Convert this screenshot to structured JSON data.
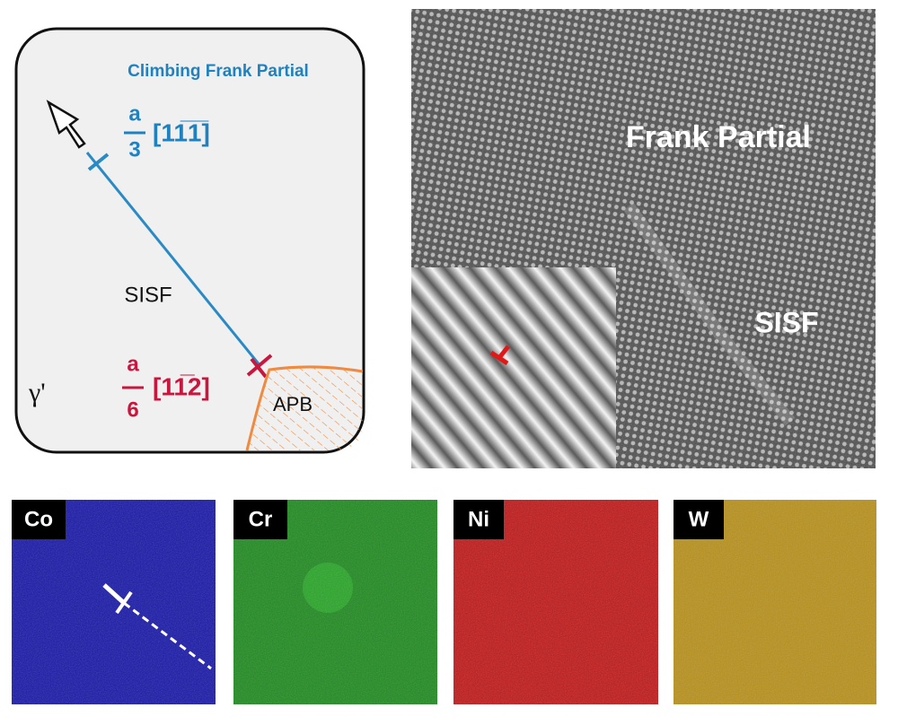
{
  "schematic": {
    "title": "Climbing Frank Partial",
    "frank_burgers": {
      "numerator": "a",
      "denominator": "3",
      "vector": "[11̅1̅]"
    },
    "fault_label": "SISF",
    "phase_label": "γ'",
    "shockley_burgers": {
      "numerator": "a",
      "denominator": "6",
      "vector": "[11̅2]"
    },
    "apb_label": "APB"
  },
  "micrograph": {
    "labels": [
      "Frank Partial",
      "SISF"
    ]
  },
  "eds_maps": [
    {
      "element": "Co"
    },
    {
      "element": "Cr"
    },
    {
      "element": "Ni"
    },
    {
      "element": "W"
    }
  ]
}
